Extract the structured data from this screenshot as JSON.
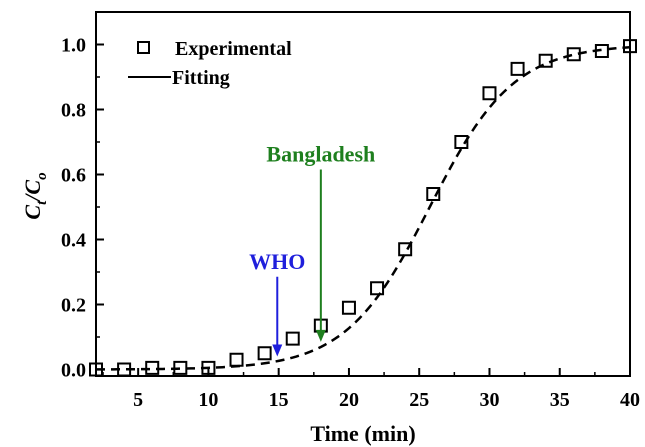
{
  "chart_data": {
    "type": "scatter",
    "xlabel": "Time (min)",
    "ylabel": {
      "base": "C",
      "sub1": "t",
      "sep": "/C",
      "sub2": "o"
    },
    "xlim": [
      2,
      40
    ],
    "ylim": [
      -0.02,
      1.1
    ],
    "xticks": [
      5,
      10,
      15,
      20,
      25,
      30,
      35,
      40
    ],
    "yticks": [
      0.0,
      0.2,
      0.4,
      0.6,
      0.8,
      1.0
    ],
    "xtick_labels": [
      "5",
      "10",
      "15",
      "20",
      "25",
      "30",
      "35",
      "40"
    ],
    "ytick_labels": [
      "0.0",
      "0.2",
      "0.4",
      "0.6",
      "0.8",
      "1.0"
    ],
    "grid": false,
    "legend": {
      "position": "top-left",
      "experimental_label": "Experimental",
      "fitting_label": "Fitting"
    },
    "series": [
      {
        "name": "Experimental",
        "style": "open-square-marker",
        "x": [
          2,
          4,
          6,
          8,
          10,
          12,
          14,
          16,
          18,
          20,
          22,
          24,
          26,
          28,
          30,
          32,
          34,
          36,
          38,
          40
        ],
        "y": [
          0.0,
          0.0,
          0.005,
          0.005,
          0.005,
          0.03,
          0.05,
          0.095,
          0.135,
          0.19,
          0.25,
          0.37,
          0.54,
          0.7,
          0.85,
          0.925,
          0.95,
          0.97,
          0.98,
          0.995
        ]
      },
      {
        "name": "Fitting",
        "style": "dashed-line",
        "model": "logistic",
        "params": {
          "k": 0.335,
          "x0": 25.75
        }
      }
    ],
    "annotations": [
      {
        "label": "WHO",
        "color": "#1f1fdc",
        "x": 14.9,
        "y_point": 0.04,
        "y_label": 0.31
      },
      {
        "label": "Bangladesh",
        "color": "#1e7f1e",
        "x": 18.0,
        "y_point": 0.085,
        "y_label": 0.64
      }
    ]
  }
}
